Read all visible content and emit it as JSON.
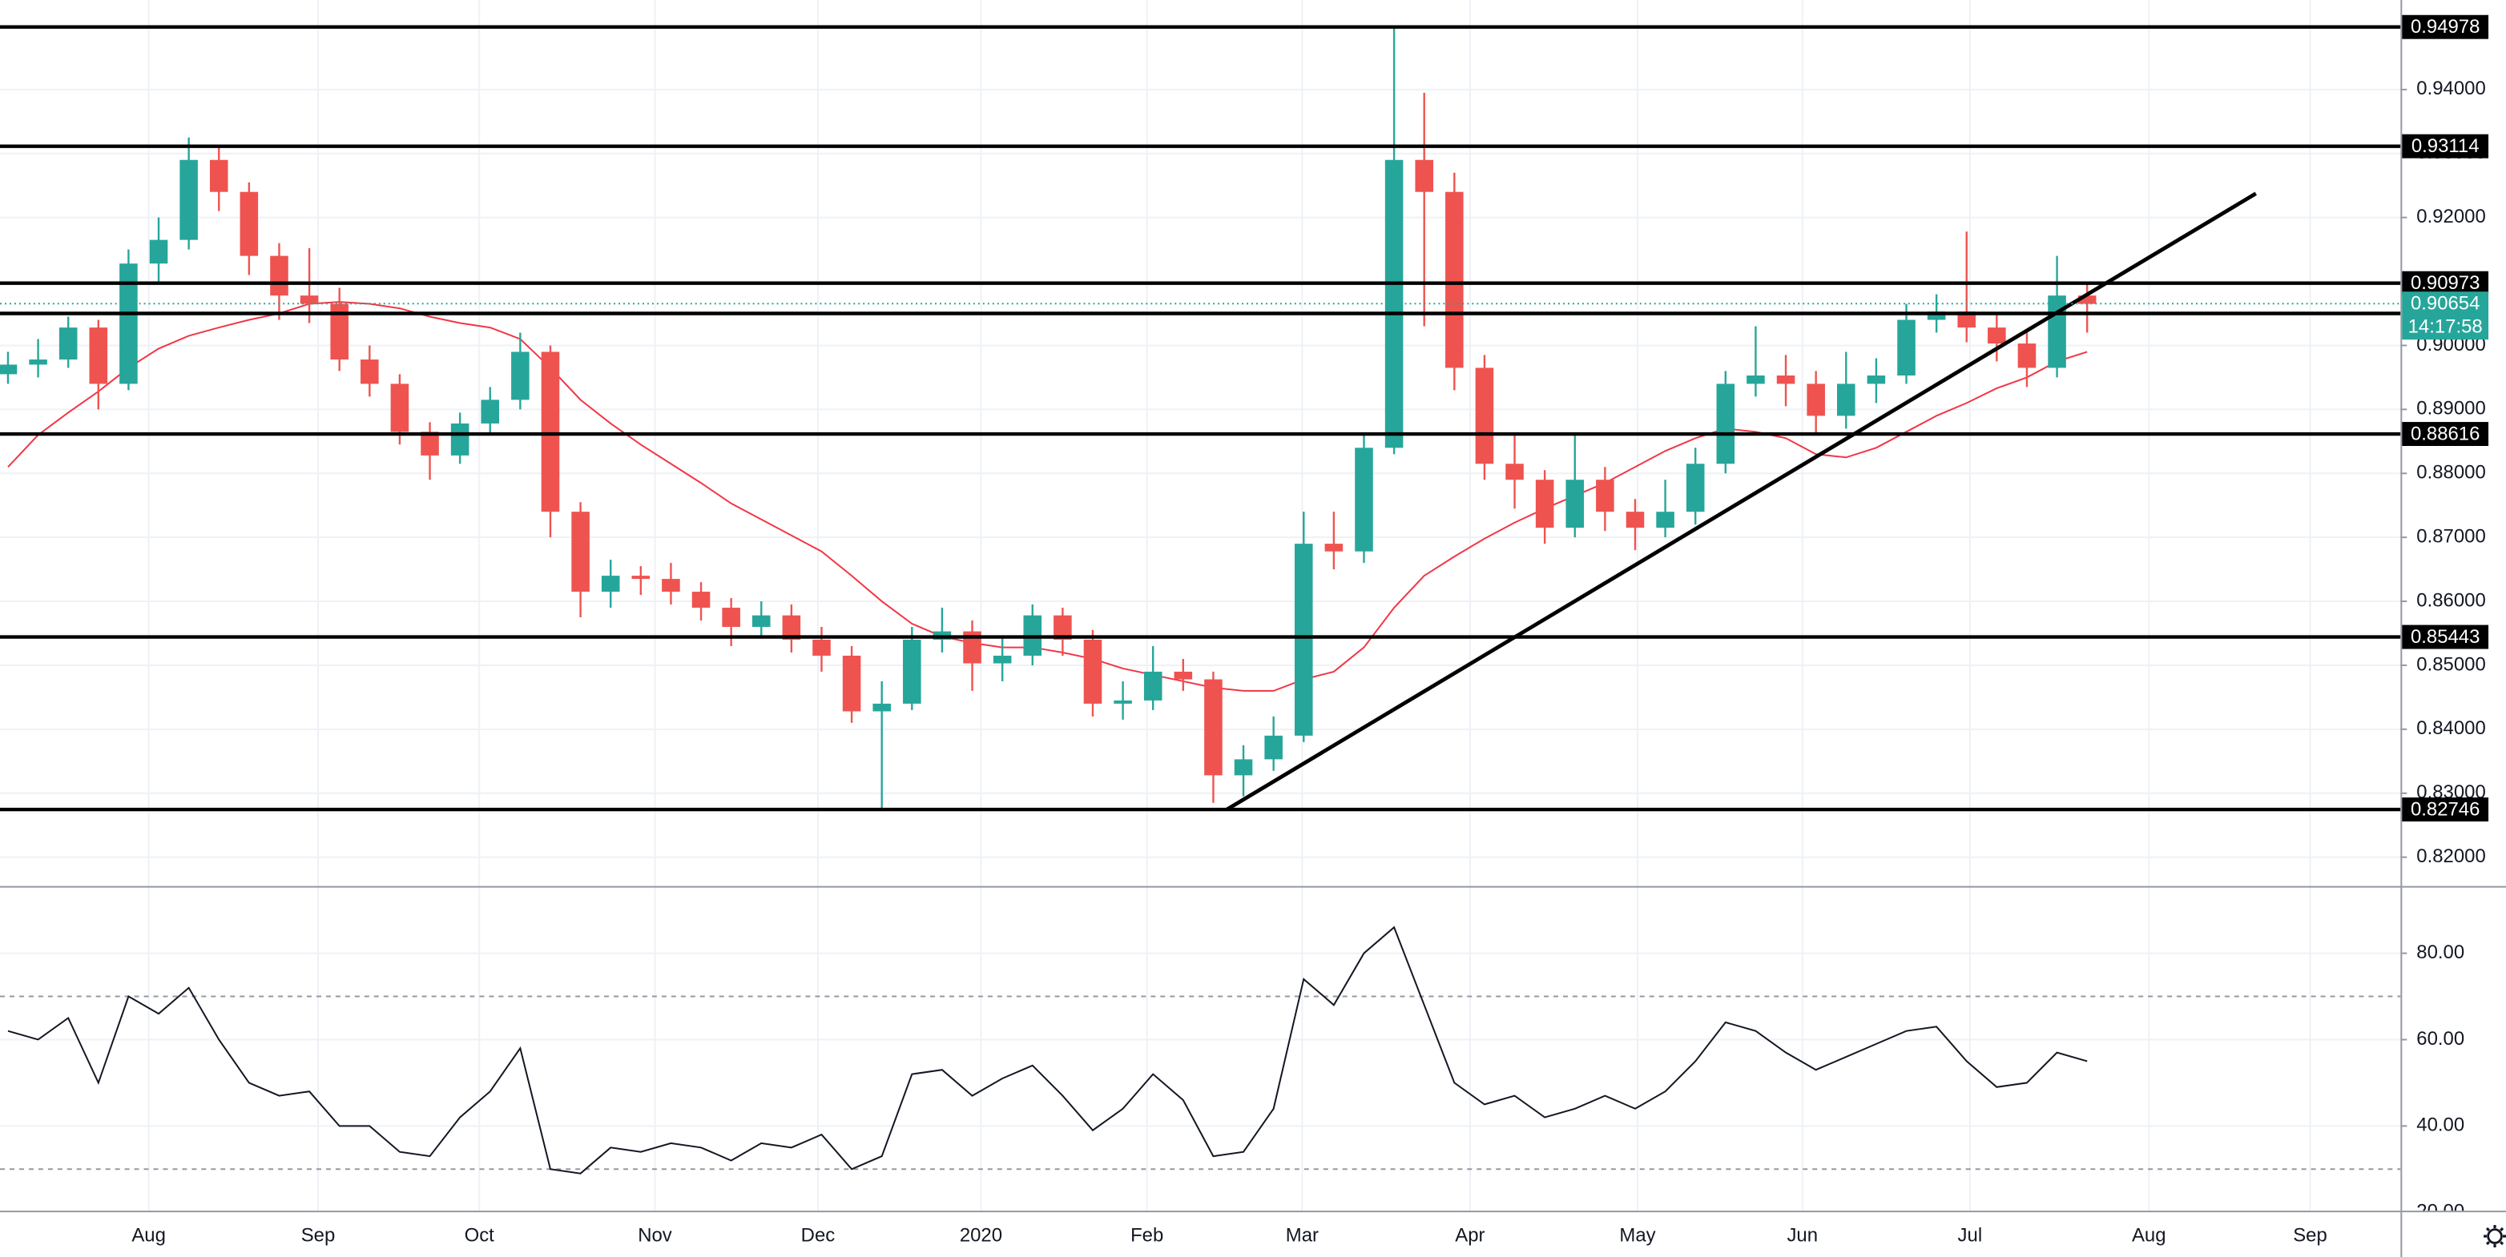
{
  "chart_data": [
    {
      "type": "candlestick",
      "open": [
        0.8955,
        0.897,
        0.8978,
        0.9028,
        0.894,
        0.9128,
        0.9165,
        0.929,
        0.924,
        0.914,
        0.9078,
        0.9065,
        0.8978,
        0.894,
        0.8865,
        0.8828,
        0.8878,
        0.8915,
        0.899,
        0.874,
        0.8615,
        0.864,
        0.8635,
        0.8615,
        0.859,
        0.856,
        0.8578,
        0.854,
        0.8515,
        0.8428,
        0.844,
        0.854,
        0.8553,
        0.8503,
        0.8515,
        0.8578,
        0.854,
        0.844,
        0.8445,
        0.849,
        0.8478,
        0.8328,
        0.8353,
        0.839,
        0.869,
        0.8678,
        0.884,
        0.929,
        0.924,
        0.8965,
        0.8815,
        0.879,
        0.8715,
        0.879,
        0.874,
        0.8715,
        0.874,
        0.8815,
        0.894,
        0.8953,
        0.894,
        0.889,
        0.894,
        0.8953,
        0.904,
        0.9053,
        0.9028,
        0.9003,
        0.8965,
        0.9078
      ],
      "high": [
        0.899,
        0.901,
        0.9045,
        0.904,
        0.915,
        0.92,
        0.9325,
        0.931,
        0.9255,
        0.916,
        0.9152,
        0.909,
        0.9,
        0.8955,
        0.888,
        0.8895,
        0.8935,
        0.902,
        0.9,
        0.8755,
        0.8665,
        0.8655,
        0.866,
        0.863,
        0.8605,
        0.86,
        0.8595,
        0.856,
        0.853,
        0.8475,
        0.856,
        0.859,
        0.857,
        0.8545,
        0.8595,
        0.859,
        0.8555,
        0.8475,
        0.853,
        0.851,
        0.849,
        0.8375,
        0.842,
        0.874,
        0.874,
        0.886,
        0.94978,
        0.9395,
        0.927,
        0.8985,
        0.886,
        0.8805,
        0.886,
        0.881,
        0.876,
        0.879,
        0.884,
        0.896,
        0.903,
        0.8985,
        0.896,
        0.899,
        0.898,
        0.9065,
        0.908,
        0.9178,
        0.905,
        0.902,
        0.914,
        0.91
      ],
      "low": [
        0.894,
        0.895,
        0.8965,
        0.89,
        0.893,
        0.91,
        0.915,
        0.921,
        0.911,
        0.904,
        0.9035,
        0.896,
        0.892,
        0.8845,
        0.879,
        0.8815,
        0.886,
        0.89,
        0.87,
        0.8575,
        0.859,
        0.861,
        0.8595,
        0.857,
        0.853,
        0.8545,
        0.852,
        0.849,
        0.841,
        0.8275,
        0.843,
        0.852,
        0.846,
        0.8475,
        0.85,
        0.8515,
        0.842,
        0.8415,
        0.843,
        0.846,
        0.8285,
        0.8295,
        0.8335,
        0.838,
        0.865,
        0.866,
        0.883,
        0.903,
        0.893,
        0.879,
        0.8745,
        0.869,
        0.87,
        0.871,
        0.868,
        0.87,
        0.872,
        0.88,
        0.892,
        0.8905,
        0.886,
        0.887,
        0.891,
        0.894,
        0.902,
        0.9005,
        0.8975,
        0.8935,
        0.895,
        0.902
      ],
      "close": [
        0.897,
        0.8978,
        0.9028,
        0.894,
        0.9128,
        0.9165,
        0.929,
        0.924,
        0.914,
        0.9078,
        0.9065,
        0.8978,
        0.894,
        0.8865,
        0.8828,
        0.8878,
        0.8915,
        0.899,
        0.874,
        0.8615,
        0.864,
        0.8635,
        0.8615,
        0.859,
        0.856,
        0.8578,
        0.854,
        0.8515,
        0.8428,
        0.844,
        0.854,
        0.8553,
        0.8503,
        0.8515,
        0.8578,
        0.854,
        0.844,
        0.8445,
        0.849,
        0.8478,
        0.8328,
        0.8353,
        0.839,
        0.869,
        0.8678,
        0.884,
        0.929,
        0.924,
        0.8965,
        0.8815,
        0.879,
        0.8715,
        0.879,
        0.874,
        0.8715,
        0.874,
        0.8815,
        0.894,
        0.8953,
        0.894,
        0.889,
        0.894,
        0.8953,
        0.904,
        0.9053,
        0.9028,
        0.9003,
        0.8965,
        0.9078,
        0.9065
      ],
      "up_color": "#26a69a",
      "down_color": "#ef5350",
      "moving_average": {
        "color": "#f23645",
        "values": [
          0.881,
          0.886,
          0.8895,
          0.8928,
          0.8965,
          0.8995,
          0.9015,
          0.9028,
          0.904,
          0.905,
          0.9065,
          0.9068,
          0.9065,
          0.9058,
          0.9045,
          0.9035,
          0.9028,
          0.901,
          0.8965,
          0.8915,
          0.8878,
          0.8845,
          0.8815,
          0.8785,
          0.8753,
          0.8728,
          0.8703,
          0.8678,
          0.864,
          0.86,
          0.8565,
          0.8545,
          0.8535,
          0.8528,
          0.8528,
          0.852,
          0.851,
          0.8495,
          0.8485,
          0.8475,
          0.8465,
          0.846,
          0.846,
          0.8478,
          0.849,
          0.8528,
          0.859,
          0.864,
          0.867,
          0.8698,
          0.8723,
          0.8745,
          0.8765,
          0.8785,
          0.881,
          0.8835,
          0.8855,
          0.887,
          0.8865,
          0.8855,
          0.883,
          0.8825,
          0.884,
          0.8865,
          0.889,
          0.891,
          0.8933,
          0.895,
          0.8975,
          0.899
        ]
      },
      "levels": [
        0.94978,
        0.93114,
        0.90973,
        0.88616,
        0.85443,
        0.82746
      ],
      "unlabeled_levels": [
        0.905
      ],
      "level_color": "#000000",
      "last_price": 0.90654,
      "countdown": "14:17:58",
      "last_color": "#26a69a",
      "trendline": {
        "x": [
          40.45,
          74.6
        ],
        "y": [
          0.82746,
          0.92375
        ]
      },
      "xlim": [
        -0.265,
        79.4
      ],
      "xticks": [
        {
          "value": 4.67,
          "label": "Aug"
        },
        {
          "value": 10.29,
          "label": "Sep"
        },
        {
          "value": 15.64,
          "label": "Oct"
        },
        {
          "value": 21.47,
          "label": "Nov"
        },
        {
          "value": 26.88,
          "label": "Dec"
        },
        {
          "value": 32.29,
          "label": "2020"
        },
        {
          "value": 37.8,
          "label": "Feb"
        },
        {
          "value": 42.95,
          "label": "Mar"
        },
        {
          "value": 48.52,
          "label": "Apr"
        },
        {
          "value": 54.08,
          "label": "May"
        },
        {
          "value": 59.55,
          "label": "Jun"
        },
        {
          "value": 65.11,
          "label": "Jul"
        },
        {
          "value": 71.05,
          "label": "Aug"
        },
        {
          "value": 76.4,
          "label": "Sep"
        }
      ],
      "ylim": [
        0.81575,
        0.954
      ],
      "yticks": [
        {
          "value": 0.82,
          "label": "0.82000"
        },
        {
          "value": 0.83,
          "label": "0.83000"
        },
        {
          "value": 0.84,
          "label": "0.84000"
        },
        {
          "value": 0.85,
          "label": "0.85000"
        },
        {
          "value": 0.86,
          "label": "0.86000"
        },
        {
          "value": 0.87,
          "label": "0.87000"
        },
        {
          "value": 0.88,
          "label": "0.88000"
        },
        {
          "value": 0.89,
          "label": "0.89000"
        },
        {
          "value": 0.9,
          "label": "0.90000"
        },
        {
          "value": 0.91,
          "label": "0.91000"
        },
        {
          "value": 0.92,
          "label": "0.92000"
        },
        {
          "value": 0.93,
          "label": "0.93000"
        },
        {
          "value": 0.94,
          "label": "0.94000"
        }
      ],
      "grid": true
    },
    {
      "type": "line",
      "values": [
        62,
        60,
        65,
        50,
        70,
        66,
        72,
        60,
        50,
        47,
        48,
        40,
        40,
        34,
        33,
        42,
        48,
        58,
        30,
        29,
        35,
        34,
        36,
        35,
        32,
        36,
        35,
        38,
        30,
        33,
        52,
        53,
        47,
        51,
        54,
        47,
        39,
        44,
        52,
        46,
        33,
        34,
        44,
        74,
        68,
        80,
        86,
        68,
        50,
        45,
        47,
        42,
        44,
        47,
        44,
        48,
        55,
        64,
        62,
        57,
        53,
        56,
        59,
        62,
        63,
        55,
        49,
        50,
        57,
        55
      ],
      "color": "#131722",
      "bands": [
        70,
        30
      ],
      "ylim": [
        20.4,
        95.2
      ],
      "yticks": [
        {
          "value": 20,
          "label": "20.00"
        },
        {
          "value": 40,
          "label": "40.00"
        },
        {
          "value": 60,
          "label": "60.00"
        },
        {
          "value": 80,
          "label": "80.00"
        }
      ],
      "grid": true
    }
  ]
}
